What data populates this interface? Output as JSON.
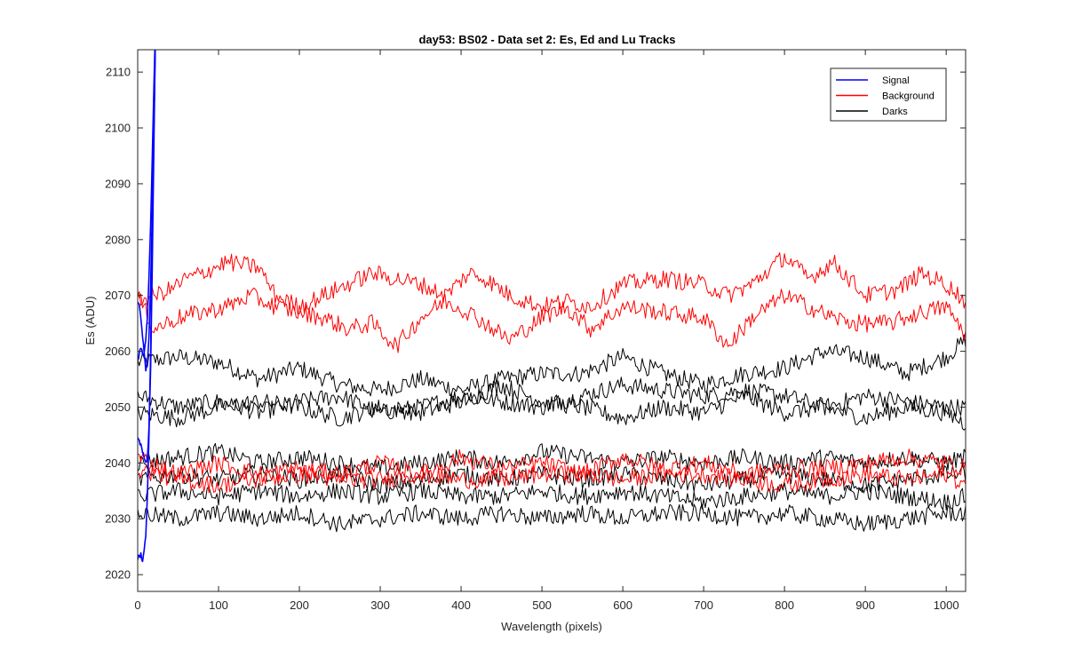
{
  "chart_data": {
    "type": "line",
    "title": "day53: BS02 - Data set 2: Es, Ed and Lu Tracks",
    "xlabel": "Wavelength (pixels)",
    "ylabel": "Es (ADU)",
    "xlim": [
      0,
      1024
    ],
    "ylim": [
      2017,
      2114
    ],
    "xticks": [
      0,
      100,
      200,
      300,
      400,
      500,
      600,
      700,
      800,
      900,
      1000
    ],
    "yticks": [
      2020,
      2030,
      2040,
      2050,
      2060,
      2070,
      2080,
      2090,
      2100,
      2110
    ],
    "grid": false,
    "legend_position": "top-right",
    "legend": [
      {
        "label": "Signal",
        "color": "#0000ff"
      },
      {
        "label": "Background",
        "color": "#ff0000"
      },
      {
        "label": "Darks",
        "color": "#000000"
      }
    ],
    "colors": {
      "Signal": "#0000ff",
      "Background": "#ff0000",
      "Darks": "#000000"
    },
    "series": [
      {
        "group": "Signal",
        "color": "#0000ff",
        "x": [
          0,
          2,
          4,
          6,
          8,
          10,
          12,
          14,
          16,
          18,
          20,
          22
        ],
        "y": [
          2058,
          2060,
          2061,
          2059,
          2060,
          2062,
          2066,
          2073,
          2083,
          2095,
          2107,
          2118
        ]
      },
      {
        "group": "Signal",
        "color": "#0000ff",
        "x": [
          0,
          2,
          4,
          6,
          8,
          10,
          12,
          14,
          16,
          18,
          20,
          22
        ],
        "y": [
          2069,
          2068,
          2066,
          2063,
          2060,
          2057,
          2058,
          2063,
          2072,
          2085,
          2100,
          2116
        ]
      },
      {
        "group": "Signal",
        "color": "#0000ff",
        "x": [
          0,
          2,
          4,
          6,
          8,
          10,
          12,
          14,
          16,
          18,
          20,
          22
        ],
        "y": [
          2045,
          2044,
          2043,
          2042,
          2041,
          2040,
          2041,
          2046,
          2057,
          2075,
          2096,
          2118
        ]
      },
      {
        "group": "Signal",
        "color": "#0000ff",
        "x": [
          0,
          2,
          4,
          6,
          8,
          10,
          12,
          14,
          16,
          18,
          20,
          22
        ],
        "y": [
          2023,
          2023,
          2024,
          2022,
          2024,
          2027,
          2034,
          2045,
          2060,
          2080,
          2102,
          2118
        ]
      },
      {
        "group": "Background",
        "color": "#ff0000",
        "x": [
          0,
          40,
          60,
          80,
          110,
          150,
          170,
          200,
          230,
          260,
          290,
          320,
          350,
          380,
          410,
          430,
          460,
          500,
          530,
          560,
          600,
          650,
          700,
          730,
          760,
          800,
          830,
          860,
          900,
          940,
          970,
          1000,
          1024
        ],
        "y": [
          2069,
          2071,
          2073,
          2074,
          2076,
          2075,
          2070,
          2068,
          2070,
          2072,
          2074,
          2073,
          2072,
          2070,
          2074,
          2073,
          2070,
          2068,
          2069,
          2068,
          2072,
          2073,
          2072,
          2070,
          2072,
          2077,
          2073,
          2076,
          2070,
          2071,
          2074,
          2072,
          2069
        ]
      },
      {
        "group": "Background",
        "color": "#ff0000",
        "x": [
          0,
          20,
          50,
          80,
          110,
          140,
          170,
          200,
          230,
          260,
          290,
          320,
          350,
          380,
          410,
          430,
          460,
          500,
          530,
          560,
          600,
          650,
          700,
          730,
          760,
          800,
          830,
          860,
          890,
          930,
          970,
          1000,
          1024
        ],
        "y": [
          2070,
          2064,
          2066,
          2067,
          2068,
          2070,
          2068,
          2067,
          2066,
          2064,
          2065,
          2061,
          2066,
          2069,
          2067,
          2065,
          2062,
          2066,
          2068,
          2064,
          2068,
          2067,
          2066,
          2061,
          2066,
          2070,
          2068,
          2066,
          2065,
          2065,
          2067,
          2068,
          2063
        ]
      },
      {
        "group": "Background",
        "color": "#ff0000",
        "x": [
          0,
          50,
          100,
          150,
          200,
          250,
          300,
          350,
          400,
          450,
          500,
          550,
          600,
          650,
          700,
          750,
          800,
          850,
          900,
          950,
          1000,
          1024
        ],
        "y": [
          2041,
          2038,
          2040,
          2038,
          2039,
          2038,
          2040,
          2038,
          2041,
          2039,
          2040,
          2038,
          2041,
          2039,
          2040,
          2038,
          2039,
          2039,
          2040,
          2041,
          2040,
          2039
        ]
      },
      {
        "group": "Background",
        "color": "#ff0000",
        "x": [
          0,
          50,
          100,
          150,
          200,
          250,
          300,
          350,
          400,
          450,
          500,
          550,
          600,
          650,
          700,
          750,
          800,
          850,
          900,
          950,
          1000,
          1024
        ],
        "y": [
          2039,
          2037,
          2036,
          2037,
          2038,
          2037,
          2037,
          2038,
          2037,
          2037,
          2038,
          2038,
          2037,
          2038,
          2038,
          2037,
          2036,
          2037,
          2038,
          2037,
          2038,
          2036
        ]
      },
      {
        "group": "Darks",
        "color": "#000000",
        "x": [
          0,
          50,
          100,
          150,
          200,
          250,
          300,
          350,
          400,
          450,
          500,
          550,
          600,
          650,
          700,
          750,
          800,
          850,
          900,
          950,
          1000,
          1024
        ],
        "y": [
          2058,
          2059,
          2058,
          2055,
          2057,
          2054,
          2053,
          2055,
          2053,
          2055,
          2056,
          2056,
          2059,
          2056,
          2054,
          2056,
          2057,
          2060,
          2059,
          2056,
          2059,
          2062
        ]
      },
      {
        "group": "Darks",
        "color": "#000000",
        "x": [
          0,
          50,
          100,
          150,
          200,
          250,
          300,
          350,
          400,
          450,
          500,
          550,
          600,
          650,
          700,
          750,
          800,
          850,
          900,
          950,
          1000,
          1024
        ],
        "y": [
          2052,
          2050,
          2051,
          2049,
          2051,
          2052,
          2049,
          2050,
          2052,
          2051,
          2050,
          2052,
          2054,
          2053,
          2052,
          2053,
          2052,
          2050,
          2052,
          2051,
          2050,
          2050
        ]
      },
      {
        "group": "Darks",
        "color": "#000000",
        "x": [
          0,
          50,
          100,
          150,
          200,
          250,
          300,
          350,
          400,
          450,
          500,
          550,
          600,
          650,
          700,
          750,
          800,
          850,
          900,
          950,
          1000,
          1024
        ],
        "y": [
          2049,
          2048,
          2050,
          2051,
          2050,
          2048,
          2050,
          2049,
          2051,
          2054,
          2051,
          2050,
          2048,
          2050,
          2049,
          2052,
          2049,
          2050,
          2048,
          2050,
          2049,
          2047
        ]
      },
      {
        "group": "Darks",
        "color": "#000000",
        "x": [
          0,
          50,
          100,
          150,
          200,
          250,
          300,
          350,
          400,
          450,
          500,
          550,
          600,
          650,
          700,
          750,
          800,
          850,
          900,
          950,
          1000,
          1024
        ],
        "y": [
          2040,
          2041,
          2042,
          2040,
          2041,
          2040,
          2039,
          2040,
          2041,
          2040,
          2042,
          2041,
          2040,
          2041,
          2040,
          2041,
          2040,
          2041,
          2040,
          2041,
          2040,
          2041
        ]
      },
      {
        "group": "Darks",
        "color": "#000000",
        "x": [
          0,
          50,
          100,
          150,
          200,
          250,
          300,
          350,
          400,
          450,
          500,
          550,
          600,
          650,
          700,
          750,
          800,
          850,
          900,
          950,
          1000,
          1024
        ],
        "y": [
          2037,
          2038,
          2037,
          2038,
          2037,
          2038,
          2036,
          2037,
          2038,
          2037,
          2038,
          2037,
          2038,
          2037,
          2036,
          2037,
          2038,
          2037,
          2036,
          2037,
          2038,
          2038
        ]
      },
      {
        "group": "Darks",
        "color": "#000000",
        "x": [
          0,
          50,
          100,
          150,
          200,
          250,
          300,
          350,
          400,
          450,
          500,
          550,
          600,
          650,
          700,
          750,
          800,
          850,
          900,
          950,
          1000,
          1024
        ],
        "y": [
          2034,
          2035,
          2034,
          2035,
          2034,
          2035,
          2034,
          2035,
          2034,
          2034,
          2035,
          2034,
          2035,
          2034,
          2033,
          2034,
          2035,
          2034,
          2035,
          2034,
          2033,
          2034
        ]
      },
      {
        "group": "Darks",
        "color": "#000000",
        "x": [
          0,
          50,
          100,
          150,
          200,
          250,
          300,
          350,
          400,
          450,
          500,
          550,
          600,
          650,
          700,
          750,
          800,
          850,
          900,
          950,
          1000,
          1024
        ],
        "y": [
          2031,
          2030,
          2031,
          2030,
          2031,
          2029,
          2030,
          2031,
          2030,
          2031,
          2030,
          2031,
          2030,
          2031,
          2031,
          2030,
          2031,
          2030,
          2029,
          2030,
          2031,
          2031
        ]
      }
    ]
  }
}
